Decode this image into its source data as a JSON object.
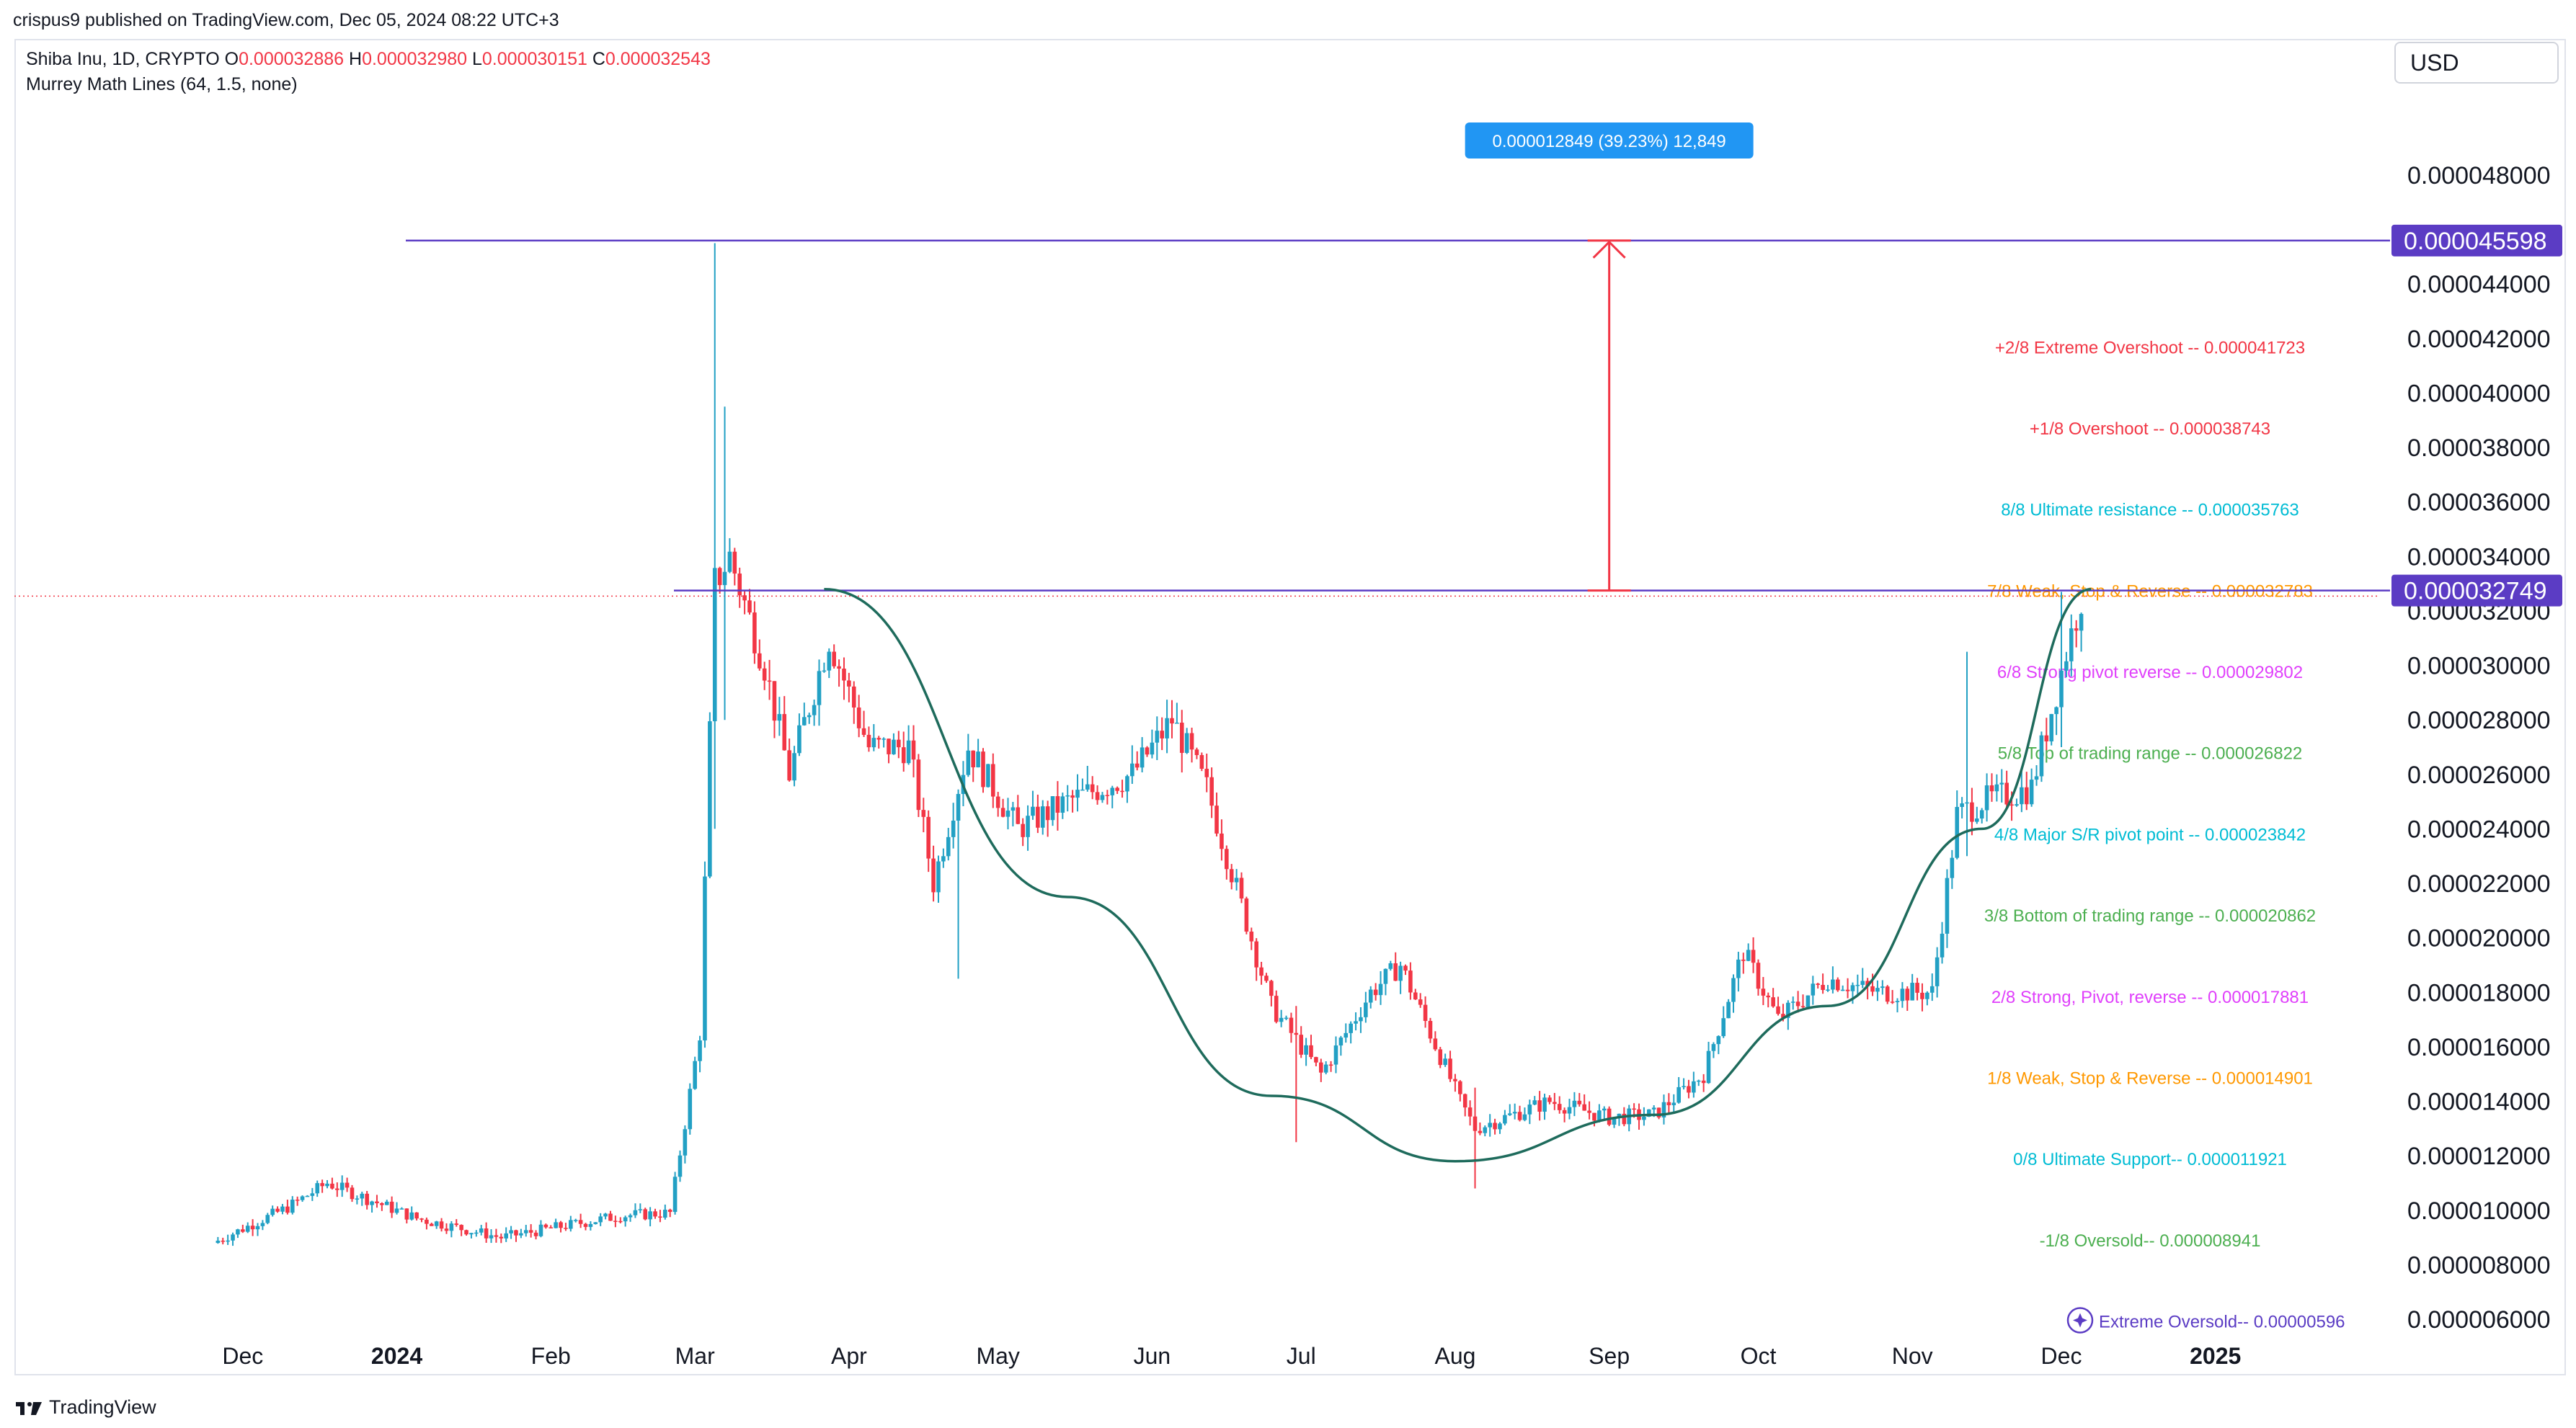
{
  "header": {
    "published": "crispus9 published on TradingView.com, Dec 05, 2024 08:22 UTC+3",
    "symbol": "Shiba Inu, 1D, CRYPTO",
    "o_label": "O",
    "o_value": "0.000032886",
    "h_label": "H",
    "h_value": "0.000032980",
    "l_label": "L",
    "l_value": "0.000030151",
    "c_label": "C",
    "c_value": "0.000032543",
    "indicator": "Murrey Math Lines (64, 1.5, none)",
    "currency": "USD"
  },
  "footer": {
    "brand": "TradingView"
  },
  "colors": {
    "up": "#22a0c4",
    "down": "#f23645",
    "purple": "#5b3cc4",
    "green_curve": "#1e6b5c",
    "measure": "#f23645",
    "measure_badge": "#2196f3"
  },
  "chart_data": {
    "type": "candlestick",
    "y_axis": {
      "ticks": [
        "0.000048000",
        "0.000044000",
        "0.000042000",
        "0.000040000",
        "0.000038000",
        "0.000036000",
        "0.000034000",
        "0.000032000",
        "0.000030000",
        "0.000028000",
        "0.000026000",
        "0.000024000",
        "0.000022000",
        "0.000020000",
        "0.000018000",
        "0.000016000",
        "0.000014000",
        "0.000012000",
        "0.000010000",
        "0.000008000",
        "0.000006000"
      ],
      "ylim": [
        6e-06,
        4.8e-05
      ]
    },
    "x_axis": {
      "ticks": [
        "Dec",
        "2024",
        "Feb",
        "Mar",
        "Apr",
        "May",
        "Jun",
        "Jul",
        "Aug",
        "Sep",
        "Oct",
        "Nov",
        "Dec",
        "2025"
      ]
    },
    "price_labels": [
      {
        "value": "0.000045598",
        "color": "#5b3cc4"
      },
      {
        "value": "0.000032749",
        "color": "#5b3cc4"
      }
    ],
    "horizontal_lines": [
      {
        "name": "resistance-high",
        "value": 4.5598e-05
      },
      {
        "name": "resistance-neckline",
        "value": 3.2749e-05
      }
    ],
    "measure": {
      "label": "0.000012849 (39.23%) 12,849",
      "from": 3.2749e-05,
      "to": 4.5598e-05,
      "date": "2024-09-01"
    },
    "murrey_levels": [
      {
        "label": "+2/8 Extreme Overshoot --  0.000041723",
        "value": 4.1723e-05,
        "color": "#f23645"
      },
      {
        "label": "+1/8 Overshoot --  0.000038743",
        "value": 3.8743e-05,
        "color": "#f23645"
      },
      {
        "label": "8/8 Ultimate resistance --  0.000035763",
        "value": 3.5763e-05,
        "color": "#00bcd4"
      },
      {
        "label": "7/8 Weak, Stop & Reverse --  0.000032783",
        "value": 3.2783e-05,
        "color": "#ff9800"
      },
      {
        "label": "6/8 Strong pivot reverse --  0.000029802",
        "value": 2.9802e-05,
        "color": "#e040fb"
      },
      {
        "label": "5/8 Top of trading range --  0.000026822",
        "value": 2.6822e-05,
        "color": "#4caf50"
      },
      {
        "label": "4/8 Major S/R pivot point --  0.000023842",
        "value": 2.3842e-05,
        "color": "#00bcd4"
      },
      {
        "label": "3/8 Bottom of trading range --  0.000020862",
        "value": 2.0862e-05,
        "color": "#4caf50"
      },
      {
        "label": "2/8 Strong, Pivot, reverse --  0.000017881",
        "value": 1.7881e-05,
        "color": "#e040fb"
      },
      {
        "label": "1/8 Weak, Stop & Reverse --  0.000014901",
        "value": 1.4901e-05,
        "color": "#ff9800"
      },
      {
        "label": "0/8 Ultimate Support--  0.000011921",
        "value": 1.1921e-05,
        "color": "#00bcd4"
      },
      {
        "label": "-1/8 Oversold--  0.000008941",
        "value": 8.941e-06,
        "color": "#4caf50"
      },
      {
        "label": "Extreme Oversold--  0.00000596",
        "value": 5.96e-06,
        "color": "#5b3cc4"
      }
    ],
    "cup_curve": [
      {
        "date": "2024-03-27",
        "y": 3.28e-05
      },
      {
        "date": "2024-05-15",
        "y": 2.15e-05
      },
      {
        "date": "2024-06-25",
        "y": 1.42e-05
      },
      {
        "date": "2024-08-01",
        "y": 1.18e-05
      },
      {
        "date": "2024-09-10",
        "y": 1.35e-05
      },
      {
        "date": "2024-10-15",
        "y": 1.75e-05
      },
      {
        "date": "2024-11-15",
        "y": 2.4e-05
      },
      {
        "date": "2024-12-07",
        "y": 3.28e-05
      }
    ],
    "anchors": [
      {
        "date": "2023-11-25",
        "c": 8.8e-06
      },
      {
        "date": "2023-12-10",
        "c": 1.01e-05
      },
      {
        "date": "2023-12-18",
        "c": 1.1e-05
      },
      {
        "date": "2024-01-05",
        "c": 9.7e-06
      },
      {
        "date": "2024-01-22",
        "c": 9e-06
      },
      {
        "date": "2024-02-15",
        "c": 9.8e-06
      },
      {
        "date": "2024-02-25",
        "c": 9.9e-06
      },
      {
        "date": "2024-03-02",
        "c": 1.65e-05
      },
      {
        "date": "2024-03-05",
        "c": 3.3e-05
      },
      {
        "date": "2024-03-08",
        "c": 3.4e-05
      },
      {
        "date": "2024-03-15",
        "c": 3e-05
      },
      {
        "date": "2024-03-20",
        "c": 2.6e-05
      },
      {
        "date": "2024-03-28",
        "c": 3.1e-05
      },
      {
        "date": "2024-04-05",
        "c": 2.7e-05
      },
      {
        "date": "2024-04-13",
        "c": 2.7e-05
      },
      {
        "date": "2024-04-18",
        "c": 2.2e-05
      },
      {
        "date": "2024-04-25",
        "c": 2.7e-05
      },
      {
        "date": "2024-05-05",
        "c": 2.4e-05
      },
      {
        "date": "2024-05-15",
        "c": 2.5e-05
      },
      {
        "date": "2024-05-28",
        "c": 2.6e-05
      },
      {
        "date": "2024-06-05",
        "c": 2.8e-05
      },
      {
        "date": "2024-06-12",
        "c": 2.55e-05
      },
      {
        "date": "2024-06-25",
        "c": 1.75e-05
      },
      {
        "date": "2024-07-05",
        "c": 1.5e-05
      },
      {
        "date": "2024-07-15",
        "c": 1.8e-05
      },
      {
        "date": "2024-07-21",
        "c": 1.9e-05
      },
      {
        "date": "2024-08-02",
        "c": 1.4e-05
      },
      {
        "date": "2024-08-05",
        "c": 1.3e-05
      },
      {
        "date": "2024-08-20",
        "c": 1.4e-05
      },
      {
        "date": "2024-09-01",
        "c": 1.34e-05
      },
      {
        "date": "2024-09-10",
        "c": 1.35e-05
      },
      {
        "date": "2024-09-20",
        "c": 1.5e-05
      },
      {
        "date": "2024-09-28",
        "c": 1.95e-05
      },
      {
        "date": "2024-10-05",
        "c": 1.7e-05
      },
      {
        "date": "2024-10-15",
        "c": 1.85e-05
      },
      {
        "date": "2024-10-25",
        "c": 1.8e-05
      },
      {
        "date": "2024-11-05",
        "c": 1.8e-05
      },
      {
        "date": "2024-11-10",
        "c": 2.45e-05
      },
      {
        "date": "2024-11-15",
        "c": 2.5e-05
      },
      {
        "date": "2024-11-25",
        "c": 2.55e-05
      },
      {
        "date": "2024-12-02",
        "c": 3.05e-05
      },
      {
        "date": "2024-12-05",
        "c": 3.25e-05
      }
    ],
    "spikes": [
      {
        "date": "2024-03-05",
        "h": 4.55e-05,
        "l": 2.4e-05
      },
      {
        "date": "2024-03-07",
        "h": 3.95e-05,
        "l": 2.8e-05
      },
      {
        "date": "2024-04-23",
        "h": 2.3e-05,
        "l": 1.85e-05
      },
      {
        "date": "2024-06-30",
        "h": 1.75e-05,
        "l": 1.25e-05
      },
      {
        "date": "2024-08-05",
        "h": 1.45e-05,
        "l": 1.08e-05
      },
      {
        "date": "2024-11-12",
        "h": 3.05e-05,
        "l": 2.3e-05
      },
      {
        "date": "2024-12-01",
        "h": 3.27e-05,
        "l": 2.7e-05
      }
    ]
  }
}
